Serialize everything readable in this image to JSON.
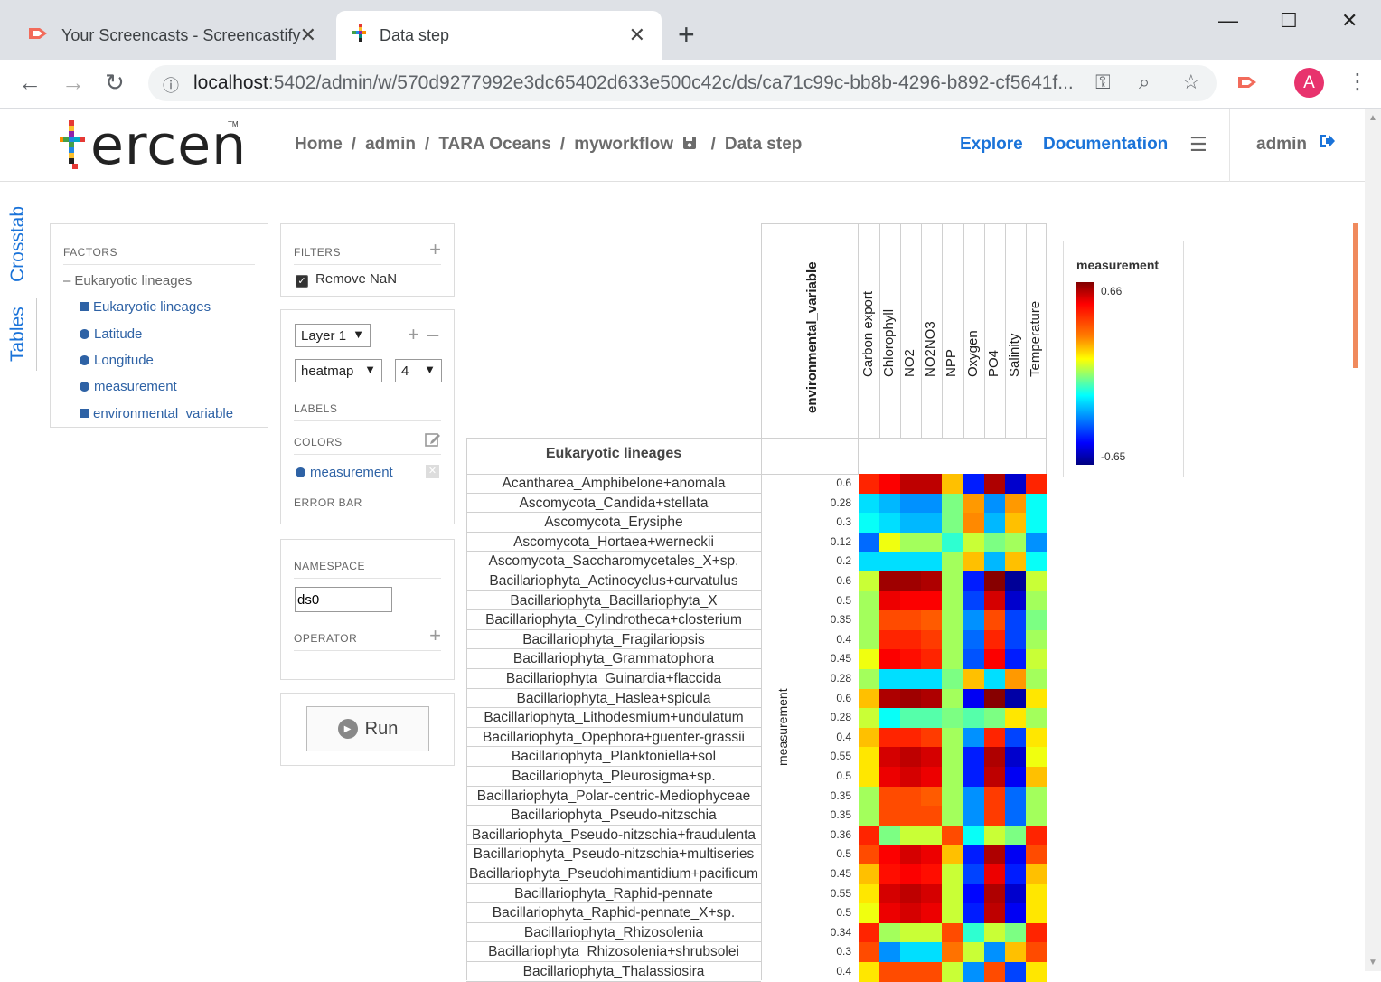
{
  "browser": {
    "tabs": [
      {
        "title": "Your Screencasts - Screencastify",
        "close": "✕"
      },
      {
        "title": "Data step",
        "close": "✕"
      }
    ],
    "new_tab": "+",
    "url_host": "localhost",
    "url_path": ":5402/admin/w/570d9277992e3dc65402d633e500c42c/ds/ca71c99c-bb8b-4296-b892-cf5641f..."
  },
  "header": {
    "logo_text": "ercen",
    "logo_tm": "TM",
    "breadcrumb": [
      "Home",
      "admin",
      "TARA Oceans",
      "myworkflow",
      "Data step"
    ],
    "nav_explore": "Explore",
    "nav_documentation": "Documentation",
    "user": "admin"
  },
  "side_tabs": [
    "Crosstab",
    "Tables"
  ],
  "factors": {
    "title": "FACTORS",
    "group": "Eukaryotic lineages",
    "items": [
      {
        "label": "Eukaryotic lineages",
        "kind": "square"
      },
      {
        "label": "Latitude",
        "kind": "dot"
      },
      {
        "label": "Longitude",
        "kind": "dot"
      },
      {
        "label": "measurement",
        "kind": "dot"
      },
      {
        "label": "environmental_variable",
        "kind": "square"
      }
    ]
  },
  "filters": {
    "title": "FILTERS",
    "remove_nan": "Remove NaN",
    "remove_nan_checked": true
  },
  "layer": {
    "layer_select": "Layer 1",
    "chart_type": "heatmap",
    "count_select": "4",
    "labels_title": "LABELS",
    "colors_title": "COLORS",
    "color_factor": "measurement",
    "error_bar_title": "ERROR BAR"
  },
  "namespace": {
    "title": "NAMESPACE",
    "value": "ds0",
    "operator_title": "OPERATOR"
  },
  "run_label": "Run",
  "heatmap": {
    "column_axis_title": "environmental_variable",
    "row_axis_title": "Eukaryotic lineages",
    "measure_axis_title": "measurement",
    "columns": [
      "Carbon export",
      "Chlorophyll",
      "NO2",
      "NO2NO3",
      "NPP",
      "Oxygen",
      "PO4",
      "Salinity",
      "Temperature"
    ],
    "rows": [
      {
        "label": "Acantharea_Amphibelone+anomala",
        "value": "0.6",
        "cells": [
          0.45,
          0.5,
          0.58,
          0.58,
          0.25,
          -0.45,
          0.6,
          -0.55,
          0.45
        ]
      },
      {
        "label": "Ascomycota_Candida+stellata",
        "value": "0.28",
        "cells": [
          -0.2,
          -0.25,
          -0.3,
          -0.3,
          0.0,
          0.3,
          -0.3,
          0.3,
          -0.15
        ]
      },
      {
        "label": "Ascomycota_Erysiphe",
        "value": "0.3",
        "cells": [
          -0.15,
          -0.2,
          -0.25,
          -0.25,
          0.0,
          0.32,
          -0.25,
          0.25,
          -0.15
        ]
      },
      {
        "label": "Ascomycota_Hortaea+werneckii",
        "value": "0.12",
        "cells": [
          -0.35,
          0.15,
          0.05,
          0.05,
          -0.1,
          0.1,
          0.0,
          0.05,
          -0.3
        ]
      },
      {
        "label": "Ascomycota_Saccharomycetales_X+sp.",
        "value": "0.2",
        "cells": [
          -0.2,
          -0.2,
          -0.2,
          -0.2,
          0.05,
          0.25,
          -0.25,
          0.25,
          -0.15
        ]
      },
      {
        "label": "Bacillariophyta_Actinocyclus+curvatulus",
        "value": "0.6",
        "cells": [
          0.1,
          0.62,
          0.62,
          0.6,
          0.05,
          -0.45,
          0.65,
          -0.62,
          0.1
        ]
      },
      {
        "label": "Bacillariophyta_Bacillariophyta_X",
        "value": "0.5",
        "cells": [
          0.05,
          0.52,
          0.5,
          0.5,
          0.05,
          -0.4,
          0.55,
          -0.55,
          0.05
        ]
      },
      {
        "label": "Bacillariophyta_Cylindrotheca+closterium",
        "value": "0.35",
        "cells": [
          0.05,
          0.4,
          0.4,
          0.38,
          0.05,
          -0.3,
          0.4,
          -0.4,
          0.0
        ]
      },
      {
        "label": "Bacillariophyta_Fragilariopsis",
        "value": "0.4",
        "cells": [
          0.05,
          0.45,
          0.45,
          0.42,
          0.05,
          -0.35,
          0.45,
          -0.4,
          0.05
        ]
      },
      {
        "label": "Bacillariophyta_Grammatophora",
        "value": "0.45",
        "cells": [
          0.15,
          0.5,
          0.48,
          0.45,
          0.05,
          -0.38,
          0.5,
          -0.45,
          0.1
        ]
      },
      {
        "label": "Bacillariophyta_Guinardia+flaccida",
        "value": "0.28",
        "cells": [
          0.05,
          -0.2,
          -0.2,
          -0.2,
          0.0,
          0.25,
          -0.2,
          0.3,
          0.05
        ]
      },
      {
        "label": "Bacillariophyta_Haslea+spicula",
        "value": "0.6",
        "cells": [
          0.25,
          0.6,
          0.62,
          0.6,
          0.05,
          -0.5,
          0.65,
          -0.6,
          0.2
        ]
      },
      {
        "label": "Bacillariophyta_Lithodesmium+undulatum",
        "value": "0.28",
        "cells": [
          0.1,
          -0.15,
          -0.05,
          -0.05,
          0.0,
          -0.05,
          0.0,
          0.2,
          0.05
        ]
      },
      {
        "label": "Bacillariophyta_Opephora+guenter-grassii",
        "value": "0.4",
        "cells": [
          0.25,
          0.45,
          0.45,
          0.42,
          0.05,
          -0.3,
          0.45,
          -0.4,
          0.2
        ]
      },
      {
        "label": "Bacillariophyta_Planktoniella+sol",
        "value": "0.55",
        "cells": [
          0.2,
          0.55,
          0.58,
          0.55,
          0.05,
          -0.45,
          0.6,
          -0.55,
          0.15
        ]
      },
      {
        "label": "Bacillariophyta_Pleurosigma+sp.",
        "value": "0.5",
        "cells": [
          0.2,
          0.52,
          0.55,
          0.52,
          0.05,
          -0.45,
          0.58,
          -0.5,
          0.25
        ]
      },
      {
        "label": "Bacillariophyta_Polar-centric-Mediophyceae",
        "value": "0.35",
        "cells": [
          0.05,
          0.4,
          0.4,
          0.38,
          0.05,
          -0.3,
          0.42,
          -0.35,
          0.05
        ]
      },
      {
        "label": "Bacillariophyta_Pseudo-nitzschia",
        "value": "0.35",
        "cells": [
          0.05,
          0.4,
          0.4,
          0.4,
          0.05,
          -0.3,
          0.42,
          -0.35,
          0.05
        ]
      },
      {
        "label": "Bacillariophyta_Pseudo-nitzschia+fraudulenta",
        "value": "0.36",
        "cells": [
          0.45,
          0.0,
          0.1,
          0.1,
          0.4,
          -0.15,
          0.1,
          0.0,
          0.45
        ]
      },
      {
        "label": "Bacillariophyta_Pseudo-nitzschia+multiseries",
        "value": "0.5",
        "cells": [
          0.4,
          0.5,
          0.55,
          0.52,
          0.25,
          -0.45,
          0.6,
          -0.5,
          0.4
        ]
      },
      {
        "label": "Bacillariophyta_Pseudohimantidium+pacificum",
        "value": "0.45",
        "cells": [
          0.25,
          0.48,
          0.5,
          0.48,
          0.1,
          -0.4,
          0.52,
          -0.45,
          0.25
        ]
      },
      {
        "label": "Bacillariophyta_Raphid-pennate",
        "value": "0.55",
        "cells": [
          0.2,
          0.55,
          0.58,
          0.55,
          0.1,
          -0.48,
          0.6,
          -0.55,
          0.2
        ]
      },
      {
        "label": "Bacillariophyta_Raphid-pennate_X+sp.",
        "value": "0.5",
        "cells": [
          0.15,
          0.52,
          0.55,
          0.52,
          0.1,
          -0.45,
          0.58,
          -0.5,
          0.2
        ]
      },
      {
        "label": "Bacillariophyta_Rhizosolenia",
        "value": "0.34",
        "cells": [
          0.45,
          0.05,
          0.1,
          0.1,
          0.4,
          -0.1,
          0.1,
          0.0,
          0.45
        ]
      },
      {
        "label": "Bacillariophyta_Rhizosolenia+shrubsolei",
        "value": "0.3",
        "cells": [
          0.4,
          -0.3,
          -0.2,
          -0.2,
          0.35,
          0.1,
          -0.3,
          0.25,
          0.4
        ]
      },
      {
        "label": "Bacillariophyta_Thalassiosira",
        "value": "0.4",
        "cells": [
          0.2,
          0.4,
          0.4,
          0.4,
          0.1,
          -0.3,
          0.4,
          -0.4,
          0.2
        ]
      }
    ],
    "scale_min": -0.65,
    "scale_max": 0.66
  },
  "legend": {
    "title": "measurement",
    "max_label": "0.66",
    "min_label": "-0.65"
  }
}
